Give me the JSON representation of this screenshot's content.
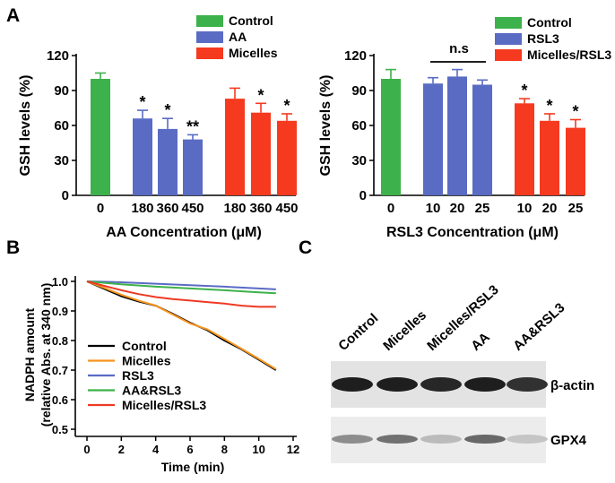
{
  "panels": {
    "a": "A",
    "b": "B",
    "c": "C"
  },
  "chart_data": [
    {
      "type": "bar",
      "panel": "A",
      "ylabel": "GSH levels (%)",
      "xlabel": "AA Concentration (μM)",
      "ylim": [
        0,
        120
      ],
      "yticks": [
        "0",
        "30",
        "60",
        "90",
        "120"
      ],
      "legend": {
        "position": "top-right",
        "entries": [
          {
            "name": "Control",
            "color": "#3db14b"
          },
          {
            "name": "AA",
            "color": "#5a6bc4"
          },
          {
            "name": "Micelles",
            "color": "#f53a1f"
          }
        ]
      },
      "bars": [
        {
          "category": "0",
          "group": "Control",
          "value": 100,
          "error": 5,
          "mark": ""
        },
        {
          "category": "180",
          "group": "AA",
          "value": 66,
          "error": 7,
          "mark": "*"
        },
        {
          "category": "360",
          "group": "AA",
          "value": 57,
          "error": 9,
          "mark": "*"
        },
        {
          "category": "450",
          "group": "AA",
          "value": 48,
          "error": 4,
          "mark": "**"
        },
        {
          "category": "180",
          "group": "Micelles",
          "value": 83,
          "error": 9,
          "mark": ""
        },
        {
          "category": "360",
          "group": "Micelles",
          "value": 71,
          "error": 8,
          "mark": "*"
        },
        {
          "category": "450",
          "group": "Micelles",
          "value": 64,
          "error": 6,
          "mark": "*"
        }
      ]
    },
    {
      "type": "bar",
      "panel": "A",
      "ylabel": "GSH levels (%)",
      "xlabel": "RSL3 Concentration (μM)",
      "ylim": [
        0,
        120
      ],
      "yticks": [
        "0",
        "30",
        "60",
        "90",
        "120"
      ],
      "annotation": "n.s",
      "legend": {
        "position": "top-right",
        "entries": [
          {
            "name": "Control",
            "color": "#3db14b"
          },
          {
            "name": "RSL3",
            "color": "#5a6bc4"
          },
          {
            "name": "Micelles/RSL3",
            "color": "#f53a1f"
          }
        ]
      },
      "bars": [
        {
          "category": "0",
          "group": "Control",
          "value": 100,
          "error": 8,
          "mark": ""
        },
        {
          "category": "10",
          "group": "RSL3",
          "value": 96,
          "error": 5,
          "mark": ""
        },
        {
          "category": "20",
          "group": "RSL3",
          "value": 102,
          "error": 6,
          "mark": ""
        },
        {
          "category": "25",
          "group": "RSL3",
          "value": 95,
          "error": 4,
          "mark": ""
        },
        {
          "category": "10",
          "group": "Micelles/RSL3",
          "value": 79,
          "error": 4,
          "mark": "*"
        },
        {
          "category": "20",
          "group": "Micelles/RSL3",
          "value": 64,
          "error": 6,
          "mark": "*"
        },
        {
          "category": "25",
          "group": "Micelles/RSL3",
          "value": 58,
          "error": 7,
          "mark": "*"
        }
      ]
    },
    {
      "type": "line",
      "panel": "B",
      "ylabel": "NADPH amount",
      "ylabel2": "(relative Abs. at 340 nm)",
      "xlabel": "Time (min)",
      "xlim": [
        0,
        12
      ],
      "ylim": [
        0.5,
        1.0
      ],
      "xticks": [
        "0",
        "2",
        "4",
        "6",
        "8",
        "10",
        "12"
      ],
      "yticks": [
        "0.5",
        "0.6",
        "0.7",
        "0.8",
        "0.9",
        "1.0"
      ],
      "legend_position": "bottom-left",
      "series": [
        {
          "name": "Control",
          "color": "#000000",
          "x": [
            0,
            1,
            2,
            3,
            4,
            5,
            6,
            7,
            8,
            9,
            10,
            11
          ],
          "y": [
            1.0,
            0.975,
            0.95,
            0.932,
            0.918,
            0.89,
            0.86,
            0.835,
            0.8,
            0.77,
            0.735,
            0.7
          ]
        },
        {
          "name": "Micelles",
          "color": "#f7941d",
          "x": [
            0,
            1,
            2,
            3,
            4,
            5,
            6,
            7,
            8,
            9,
            10,
            11
          ],
          "y": [
            1.0,
            0.978,
            0.955,
            0.935,
            0.918,
            0.888,
            0.858,
            0.838,
            0.805,
            0.772,
            0.738,
            0.703
          ]
        },
        {
          "name": "RSL3",
          "color": "#5a6bc4",
          "x": [
            0,
            2,
            4,
            6,
            8,
            10,
            11
          ],
          "y": [
            1.0,
            0.997,
            0.992,
            0.987,
            0.982,
            0.976,
            0.973
          ]
        },
        {
          "name": "AA&RSL3",
          "color": "#3db14b",
          "x": [
            0,
            2,
            4,
            6,
            8,
            10,
            11
          ],
          "y": [
            1.0,
            0.99,
            0.982,
            0.976,
            0.97,
            0.963,
            0.96
          ]
        },
        {
          "name": "Micelles/RSL3",
          "color": "#ee3a24",
          "x": [
            0,
            1,
            2,
            3,
            4,
            5,
            6,
            7,
            8,
            9,
            10,
            11
          ],
          "y": [
            1.0,
            0.985,
            0.97,
            0.957,
            0.947,
            0.94,
            0.935,
            0.93,
            0.925,
            0.918,
            0.914,
            0.914
          ]
        }
      ]
    }
  ],
  "blot": {
    "lanes": [
      "Control",
      "Micelles",
      "Micelles/RSL3",
      "AA",
      "AA&RSL3"
    ],
    "rows": [
      {
        "label": "β-actin",
        "intensity": [
          1.0,
          1.0,
          0.95,
          1.0,
          0.9
        ]
      },
      {
        "label": "GPX4",
        "intensity": [
          0.4,
          0.55,
          0.15,
          0.6,
          0.1
        ]
      }
    ]
  }
}
